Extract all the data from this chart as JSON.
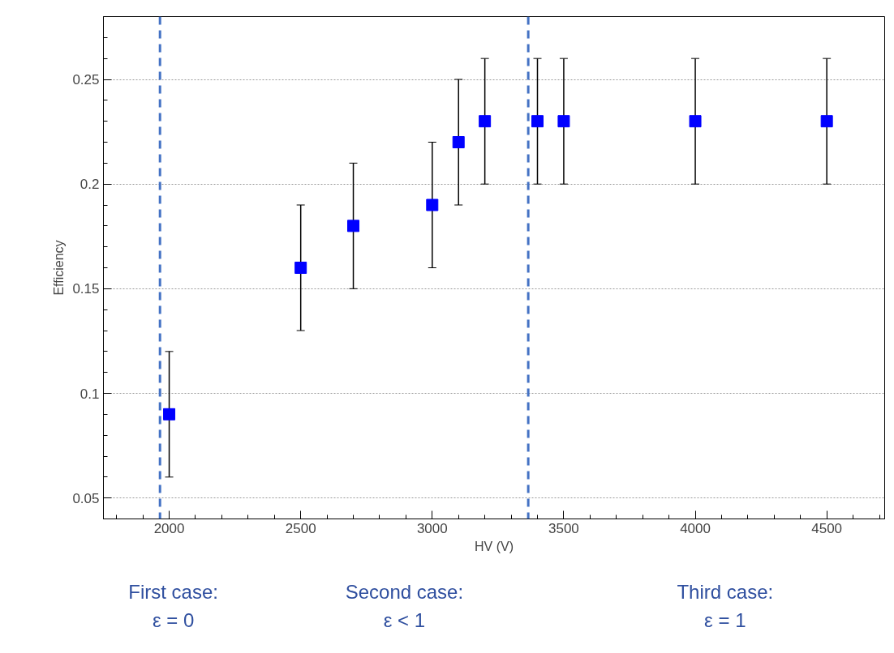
{
  "chart_data": {
    "type": "scatter",
    "ylabel": "Efficiency",
    "xlabel": "HV (V)",
    "x": [
      2000,
      2500,
      2700,
      3000,
      3100,
      3200,
      3400,
      3500,
      4000,
      4500
    ],
    "values": [
      0.09,
      0.16,
      0.18,
      0.19,
      0.22,
      0.23,
      0.23,
      0.23,
      0.23,
      0.23
    ],
    "errors": [
      0.03,
      0.03,
      0.03,
      0.03,
      0.03,
      0.03,
      0.03,
      0.03,
      0.03,
      0.03
    ],
    "color": "#0000ff",
    "marker": "square",
    "grid": "y",
    "xlim": [
      1750,
      4720
    ],
    "xticks": [
      2000,
      2500,
      3000,
      3500,
      4000,
      4500
    ],
    "ylim": [
      0.04,
      0.28
    ],
    "yticks": [
      0.05,
      0.1,
      0.15,
      0.2,
      0.25
    ],
    "ref_lines": [
      {
        "axis": "x",
        "value": 1965,
        "color": "#4472c4",
        "line_style": "dashed"
      },
      {
        "axis": "x",
        "value": 3365,
        "color": "#4472c4",
        "line_style": "dashed"
      }
    ],
    "annotations": [
      "First case:\nε = 0",
      "Second case:\nε < 1",
      "Third case:\nε = 1"
    ]
  }
}
